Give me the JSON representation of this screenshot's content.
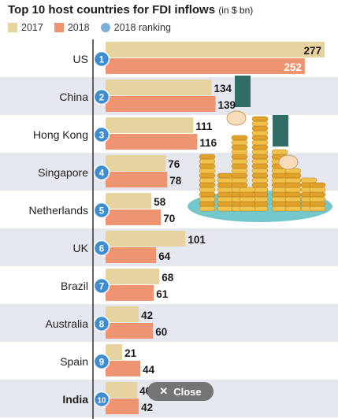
{
  "title": "Top 10 host countries for FDI inflows",
  "title_unit": "(in $ bn)",
  "legend": [
    {
      "label": "2017",
      "color": "#e6d3a0",
      "shape": "square"
    },
    {
      "label": "2018",
      "color": "#ee9470",
      "shape": "square"
    },
    {
      "label": "2018 ranking",
      "color": "#7faedc",
      "shape": "circle"
    }
  ],
  "colors": {
    "row_alt": "#e4e7ee",
    "rank_fill": "#3e8dd0",
    "axis": "#333333"
  },
  "close_button": {
    "icon": "close-icon",
    "label": "Close"
  },
  "illustration": {
    "icon": "coin-stacks-with-hands-icon"
  },
  "chart_data": {
    "type": "bar",
    "orientation": "horizontal",
    "categories": [
      "US",
      "China",
      "Hong Kong",
      "Singapore",
      "Netherlands",
      "UK",
      "Brazil",
      "Australia",
      "Spain",
      "India"
    ],
    "highlighted_category": "India",
    "ranks": [
      "1",
      "2",
      "3",
      "4",
      "5",
      "6",
      "7",
      "8",
      "9",
      "10"
    ],
    "series": [
      {
        "name": "2017",
        "values": [
          277,
          134,
          111,
          76,
          58,
          101,
          68,
          42,
          21,
          40
        ]
      },
      {
        "name": "2018",
        "values": [
          252,
          139,
          116,
          78,
          70,
          64,
          61,
          60,
          44,
          42
        ]
      }
    ],
    "xlim": [
      0,
      290
    ]
  }
}
